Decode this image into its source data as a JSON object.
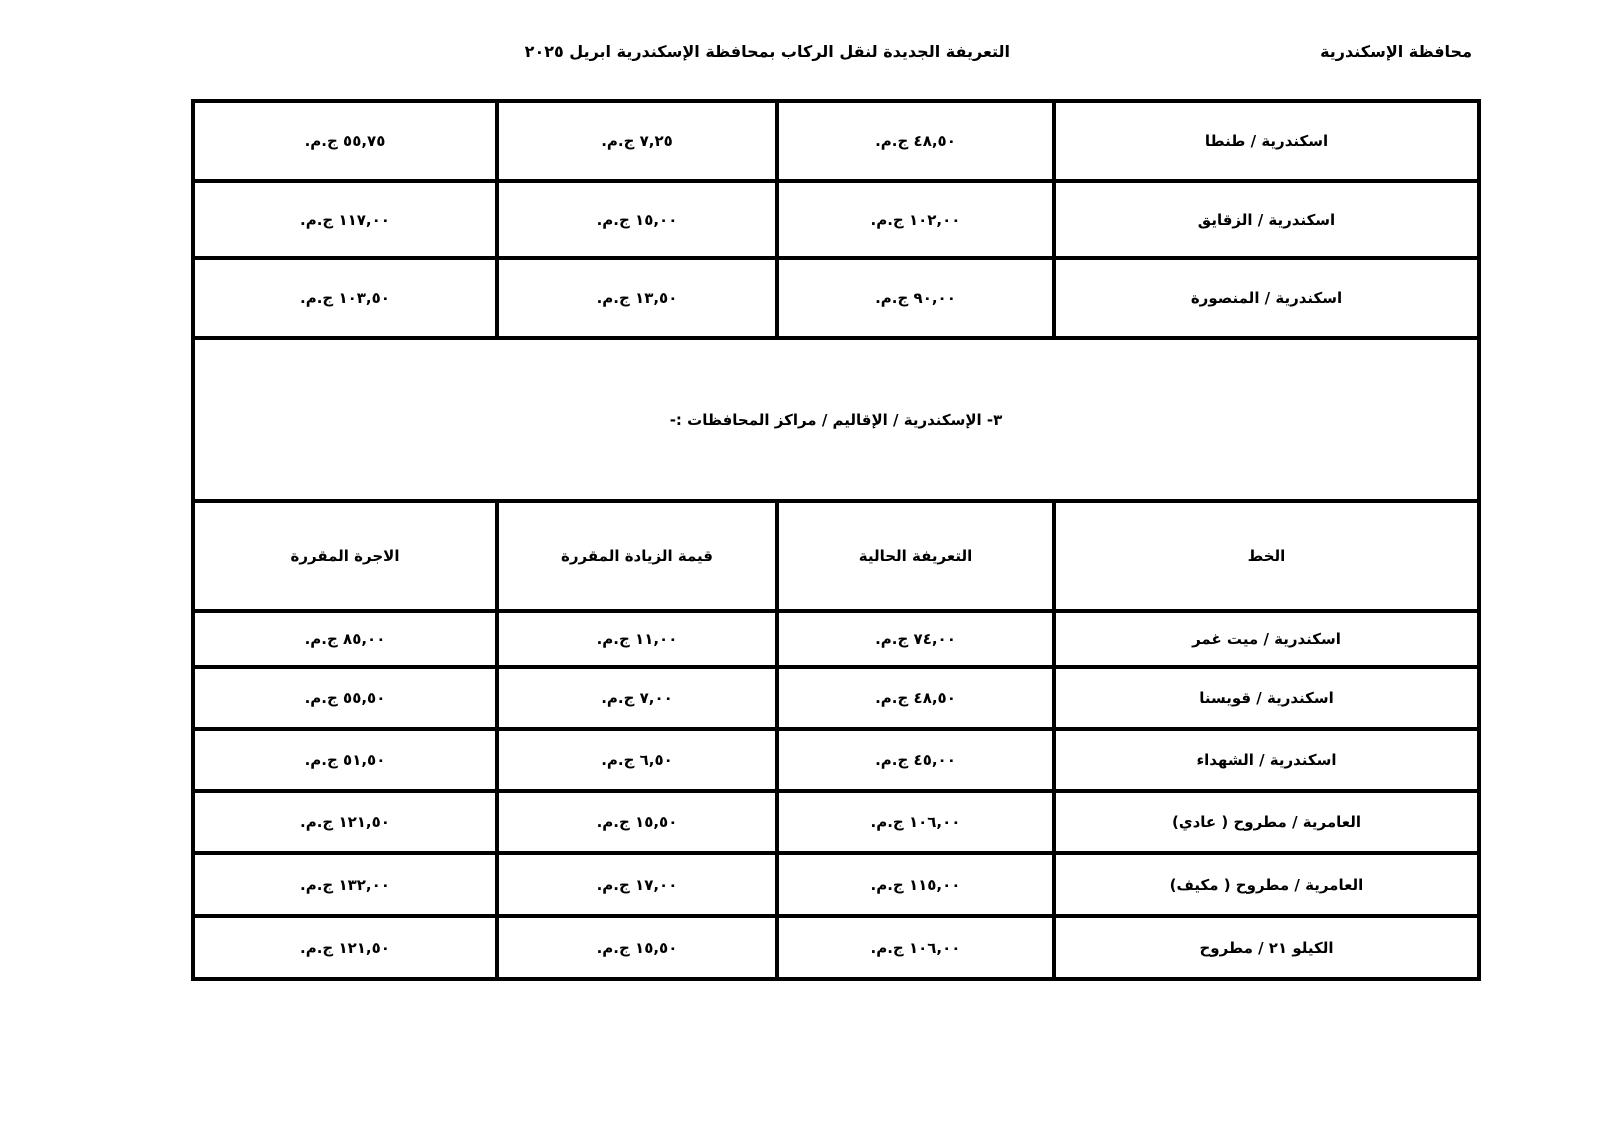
{
  "header": {
    "governorate": "محافظة الإسكندرية",
    "title": "التعريفة الجديدة لنقل الركاب بمحافظة الإسكندرية ابريل ٢٠٢٥"
  },
  "table_top": [
    {
      "route": "اسكندرية / طنطا",
      "current": "٤٨,٥٠ ج.م.",
      "increase": "٧,٢٥ ج.م.",
      "fare": "٥٥,٧٥ ج.م."
    },
    {
      "route": "اسكندرية / الزقايق",
      "current": "١٠٢,٠٠ ج.م.",
      "increase": "١٥,٠٠ ج.م.",
      "fare": "١١٧,٠٠ ج.م."
    },
    {
      "route": "اسكندرية / المنصورة",
      "current": "٩٠,٠٠ ج.م.",
      "increase": "١٣,٥٠ ج.م.",
      "fare": "١٠٣,٥٠ ج.م."
    }
  ],
  "section_title": "٣- الإسكندرية / الإقاليم / مراكز المحافظات :-",
  "columns": {
    "route": "الخط",
    "current": "التعريفة الحالية",
    "increase": "قيمة الزيادة المقررة",
    "fare": "الاجرة المقررة"
  },
  "table_bottom": [
    {
      "route": "اسكندرية / ميت غمر",
      "current": "٧٤,٠٠ ج.م.",
      "increase": "١١,٠٠ ج.م.",
      "fare": "٨٥,٠٠ ج.م."
    },
    {
      "route": "اسكندرية / قويسنا",
      "current": "٤٨,٥٠ ج.م.",
      "increase": "٧,٠٠ ج.م.",
      "fare": "٥٥,٥٠ ج.م."
    },
    {
      "route": "اسكندرية / الشهداء",
      "current": "٤٥,٠٠ ج.م.",
      "increase": "٦,٥٠ ج.م.",
      "fare": "٥١,٥٠ ج.م."
    },
    {
      "route": "العامرية / مطروح ( عادي)",
      "current": "١٠٦,٠٠ ج.م.",
      "increase": "١٥,٥٠ ج.م.",
      "fare": "١٢١,٥٠ ج.م."
    },
    {
      "route": "العامرية / مطروح ( مكيف)",
      "current": "١١٥,٠٠ ج.م.",
      "increase": "١٧,٠٠ ج.م.",
      "fare": "١٣٢,٠٠ ج.م."
    },
    {
      "route": "الكيلو ٢١ / مطروح",
      "current": "١٠٦,٠٠ ج.م.",
      "increase": "١٥,٥٠ ج.م.",
      "fare": "١٢١,٥٠ ج.م."
    }
  ]
}
